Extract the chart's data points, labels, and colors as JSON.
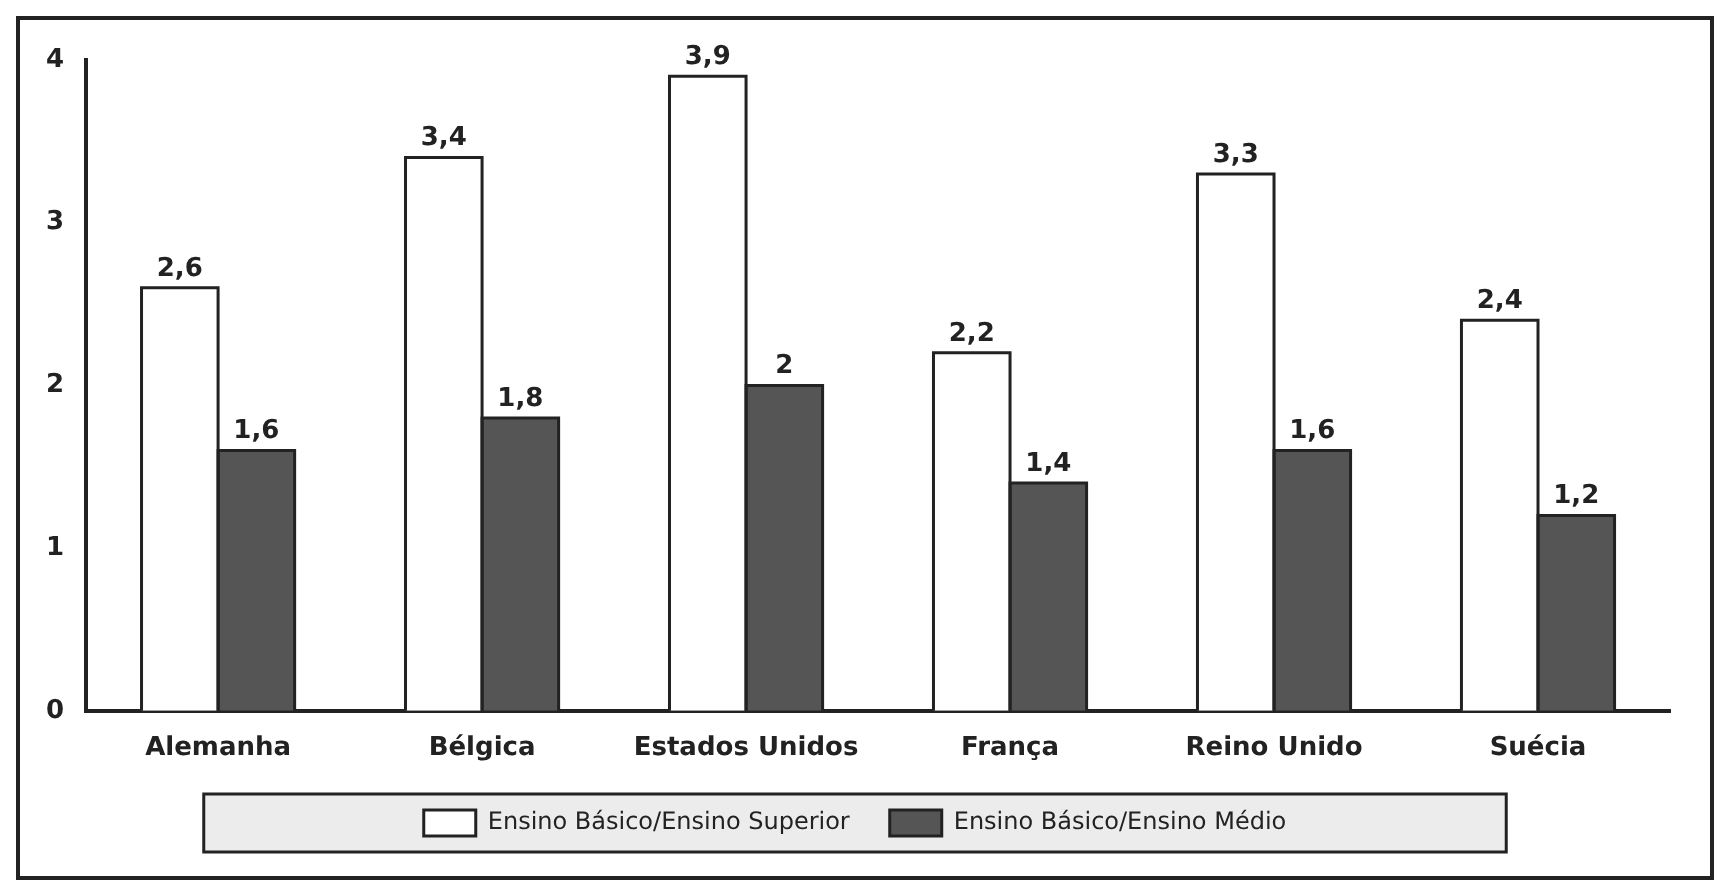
{
  "chart_data": {
    "type": "bar",
    "categories": [
      "Alemanha",
      "Bélgica",
      "Estados Unidos",
      "França",
      "Reino Unido",
      "Suécia"
    ],
    "series": [
      {
        "name": "Ensino Básico/Ensino Superior",
        "color": "#ffffff",
        "values": [
          2.6,
          3.4,
          3.9,
          2.2,
          3.3,
          2.4
        ],
        "value_labels": [
          "2,6",
          "3,4",
          "3,9",
          "2,2",
          "3,3",
          "2,4"
        ]
      },
      {
        "name": "Ensino Básico/Ensino Médio",
        "color": "#555555",
        "values": [
          1.6,
          1.8,
          2,
          1.4,
          1.6,
          1.2
        ],
        "value_labels": [
          "1,6",
          "1,8",
          "2",
          "1,4",
          "1,6",
          "1,2"
        ]
      }
    ],
    "ylim": [
      0,
      4
    ],
    "yticks": [
      0,
      1,
      2,
      3,
      4
    ],
    "grid": false,
    "legend": "bottom"
  }
}
